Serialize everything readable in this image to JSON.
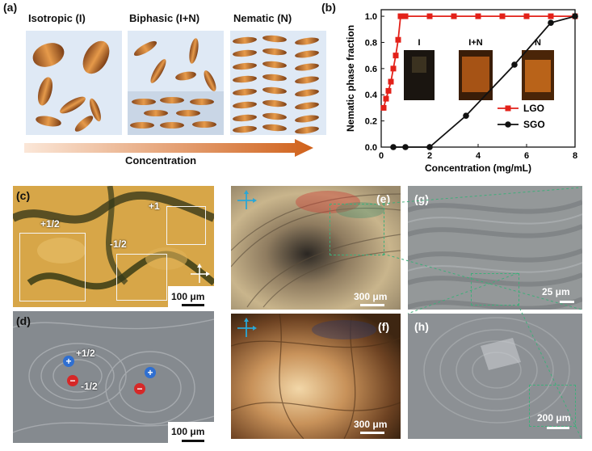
{
  "panels": {
    "a": "(a)",
    "b": "(b)",
    "c": "(c)",
    "d": "(d)",
    "e": "(e)",
    "f": "(f)",
    "g": "(g)",
    "h": "(h)"
  },
  "phases": {
    "isotropic": "Isotropic (I)",
    "biphasic": "Biphasic (I+N)",
    "nematic": "Nematic (N)"
  },
  "concentration_arrow_label": "Concentration",
  "chart_data": {
    "type": "line",
    "xlabel": "Concentration (mg/mL)",
    "ylabel": "Nematic phase fraction",
    "xlim": [
      0,
      8
    ],
    "ylim": [
      0,
      1.05
    ],
    "xticks": [
      "0",
      "2",
      "4",
      "6",
      "8"
    ],
    "yticks": [
      "0.0",
      "0.2",
      "0.4",
      "0.6",
      "0.8",
      "1.0"
    ],
    "legend_position": "bottom-right",
    "inset_labels": [
      "I",
      "I+N",
      "N"
    ],
    "series": [
      {
        "name": "LGO",
        "color": "#e32119",
        "marker": "square",
        "x": [
          0.1,
          0.2,
          0.3,
          0.4,
          0.5,
          0.6,
          0.7,
          0.8,
          1,
          2,
          3,
          4,
          5,
          6,
          7,
          8
        ],
        "y": [
          0.3,
          0.37,
          0.43,
          0.5,
          0.6,
          0.7,
          0.82,
          1.0,
          1.0,
          1.0,
          1.0,
          1.0,
          1.0,
          1.0,
          1.0,
          1.0
        ]
      },
      {
        "name": "SGO",
        "color": "#111111",
        "marker": "circle",
        "x": [
          0.5,
          1,
          2,
          3.5,
          5.5,
          7,
          8
        ],
        "y": [
          0.0,
          0.0,
          0.0,
          0.24,
          0.63,
          0.95,
          1.0
        ]
      }
    ]
  },
  "micrographs": {
    "c_labels": {
      "plus_half": "+1/2",
      "minus_half": "-1/2",
      "plus_one": "+1",
      "scale": "100 μm"
    },
    "d_labels": {
      "plus_half": "+1/2",
      "minus_half": "-1/2",
      "scale": "100 μm",
      "plus_sym": "+",
      "minus_sym": "−"
    },
    "e_scale": "300 μm",
    "f_scale": "300 μm",
    "g_scale": "25 μm",
    "h_scale": "200 μm",
    "colors": {
      "lc_gold": "#d9a346",
      "sem_gray": "#8f9397",
      "defect_plus": "#2f6fd1",
      "defect_minus": "#d62828",
      "dashed_box": "#3fae7a"
    }
  }
}
